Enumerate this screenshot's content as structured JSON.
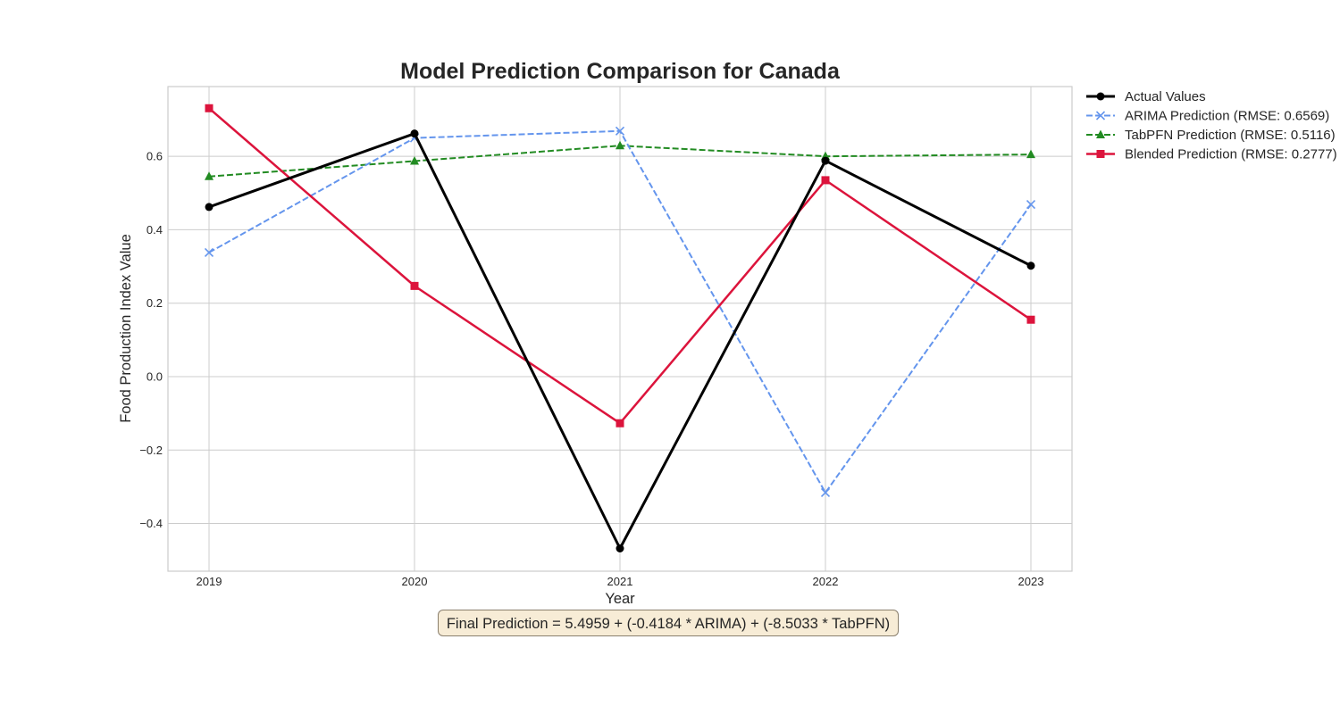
{
  "chart_data": {
    "type": "line",
    "title": "Model Prediction Comparison for Canada",
    "xlabel": "Year",
    "ylabel": "Food Production Index Value",
    "categories": [
      "2019",
      "2020",
      "2021",
      "2022",
      "2023"
    ],
    "xlim": [
      2018.8,
      2023.2
    ],
    "ylim": [
      -0.53,
      0.79
    ],
    "yticks": [
      -0.4,
      -0.2,
      0.0,
      0.2,
      0.4,
      0.6
    ],
    "ytick_labels": [
      "−0.4",
      "−0.2",
      "0.0",
      "0.2",
      "0.4",
      "0.6"
    ],
    "grid": true,
    "legend_position": "outside-top-right",
    "series": [
      {
        "name": "Actual Values",
        "values": [
          0.462,
          0.662,
          -0.468,
          0.588,
          0.302
        ],
        "color": "#000000",
        "dash": "solid",
        "marker": "circle",
        "width": 3
      },
      {
        "name": "ARIMA Prediction (RMSE: 0.6569)",
        "values": [
          0.338,
          0.65,
          0.669,
          -0.316,
          0.469
        ],
        "color": "#6495ed",
        "dash": "dashed",
        "marker": "x",
        "width": 2
      },
      {
        "name": "TabPFN Prediction (RMSE: 0.5116)",
        "values": [
          0.545,
          0.587,
          0.629,
          0.6,
          0.605
        ],
        "color": "#228b22",
        "dash": "dashed",
        "marker": "triangle",
        "width": 2
      },
      {
        "name": "Blended Prediction (RMSE: 0.2777)",
        "values": [
          0.731,
          0.247,
          -0.127,
          0.535,
          0.155
        ],
        "color": "#dc143c",
        "dash": "solid",
        "marker": "square",
        "width": 2.5
      }
    ]
  },
  "annotation": {
    "text": "Final Prediction = 5.4959 + (-0.4184 * ARIMA) + (-8.5033 * TabPFN)"
  }
}
